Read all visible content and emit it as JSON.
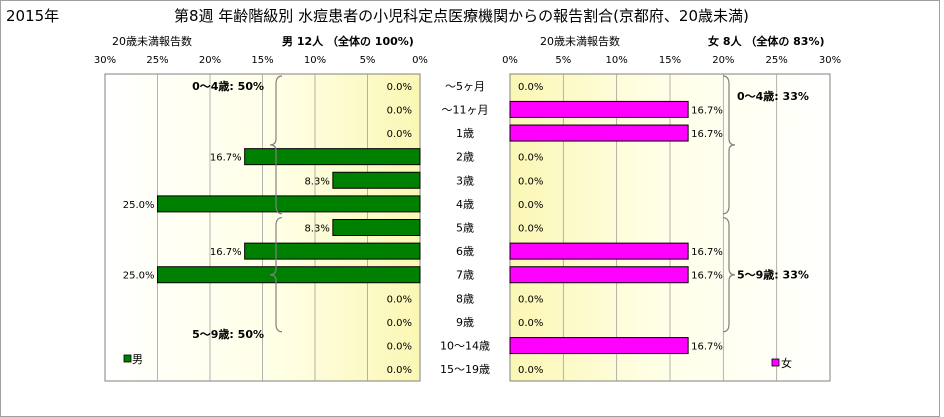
{
  "chart_data": {
    "type": "bar",
    "year": "2015年",
    "title": "第8週 年齢階級別 水痘患者の小児科定点医療機関からの報告割合(京都府、20歳未満)",
    "categories": [
      "～5ヶ月",
      "～11ヶ月",
      "1歳",
      "2歳",
      "3歳",
      "4歳",
      "5歳",
      "6歳",
      "7歳",
      "8歳",
      "9歳",
      "10～14歳",
      "15～19歳"
    ],
    "male": {
      "header": "男 12人 （全体の 100%)",
      "axis_label": "20歳未満報告数",
      "xlim": [
        0,
        30
      ],
      "ticks": [
        "30%",
        "25%",
        "20%",
        "15%",
        "10%",
        "5%",
        "0%"
      ],
      "legend": "男",
      "color": "#008000",
      "values": [
        0,
        0,
        0,
        16.7,
        8.3,
        25.0,
        8.3,
        16.7,
        25.0,
        0,
        0,
        0,
        0
      ],
      "labels": [
        "0.0%",
        "0.0%",
        "0.0%",
        "16.7%",
        "8.3%",
        "25.0%",
        "8.3%",
        "16.7%",
        "25.0%",
        "0.0%",
        "0.0%",
        "0.0%",
        "0.0%"
      ],
      "brackets": [
        {
          "label": "0～4歳: 50%",
          "from": 0,
          "to": 5
        },
        {
          "label": "5～9歳: 50%",
          "from": 6,
          "to": 10
        }
      ]
    },
    "female": {
      "header": "女 8人 （全体の 83%)",
      "axis_label": "20歳未満報告数",
      "xlim": [
        0,
        30
      ],
      "ticks": [
        "0%",
        "5%",
        "10%",
        "15%",
        "20%",
        "25%",
        "30%"
      ],
      "legend": "女",
      "color": "#ff00ff",
      "values": [
        0,
        16.7,
        16.7,
        0,
        0,
        0,
        0,
        16.7,
        16.7,
        0,
        0,
        16.7,
        0
      ],
      "labels": [
        "0.0%",
        "16.7%",
        "16.7%",
        "0.0%",
        "0.0%",
        "0.0%",
        "0.0%",
        "16.7%",
        "16.7%",
        "0.0%",
        "0.0%",
        "16.7%",
        "0.0%"
      ],
      "brackets": [
        {
          "label": "0～4歳: 33%",
          "from": 0,
          "to": 5
        },
        {
          "label": "5～9歳: 33%",
          "from": 6,
          "to": 10
        }
      ]
    }
  }
}
